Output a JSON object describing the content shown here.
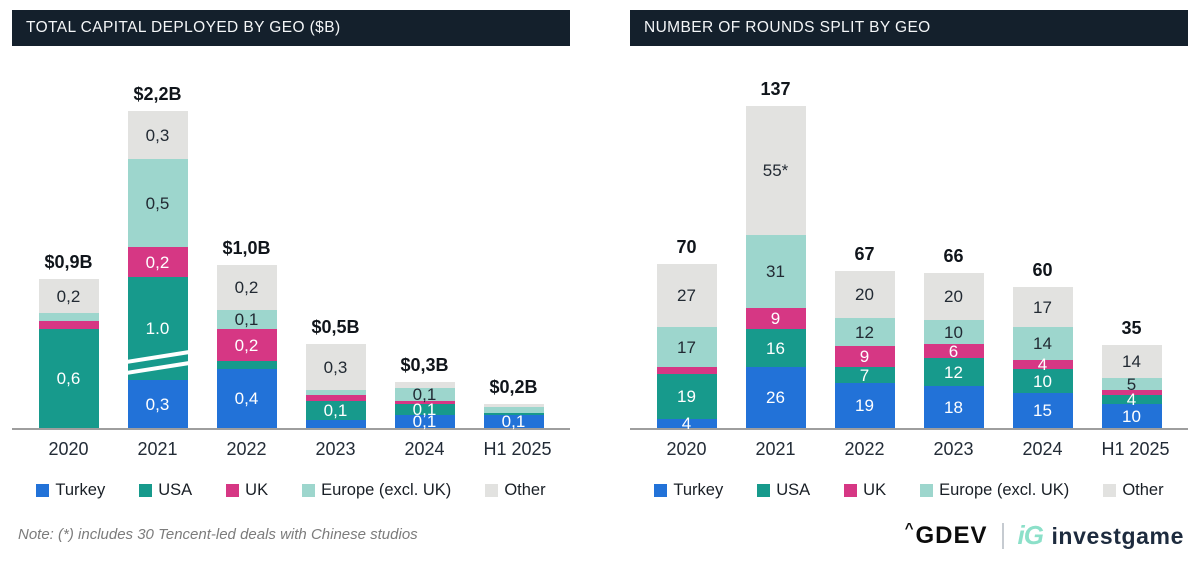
{
  "page": {
    "background": "#ffffff"
  },
  "colors": {
    "title_bar_bg": "#14202c",
    "title_bar_text": "#f4f6f8",
    "axis_line": "#9e9e9e",
    "turkey": "#2272d8",
    "usa": "#179a8c",
    "uk": "#d63784",
    "europe": "#9dd6cd",
    "other": "#e2e2e0"
  },
  "legend": [
    {
      "name": "turkey",
      "label": "Turkey",
      "color": "#2272d8"
    },
    {
      "name": "usa",
      "label": "USA",
      "color": "#179a8c"
    },
    {
      "name": "uk",
      "label": "UK",
      "color": "#d63784"
    },
    {
      "name": "europe",
      "label": "Europe (excl. UK)",
      "color": "#9dd6cd"
    },
    {
      "name": "other",
      "label": "Other",
      "color": "#e2e2e0"
    }
  ],
  "chart_data": [
    {
      "type": "bar",
      "stacked": true,
      "title": "TOTAL CAPITAL DEPLOYED BY GEO ($B)",
      "unit": "$B",
      "categories": [
        "2020",
        "2021",
        "2022",
        "2023",
        "2024",
        "H1 2025"
      ],
      "totals": [
        "$0,9B",
        "$2,2B",
        "$1,0B",
        "$0,5B",
        "$0,3B",
        "$0,2B"
      ],
      "axis_break_note": "2021 USA segment drawn with axis break",
      "series": [
        {
          "name": "Turkey",
          "key": "turkey",
          "color": "#2272d8",
          "label_color": "#ffffff",
          "values": [
            0,
            0.3,
            0.4,
            0.05,
            0.1,
            0.1
          ],
          "labels": [
            "",
            "0,3",
            "0,4",
            "",
            "0,1",
            "0,1"
          ],
          "heights": [
            0,
            48,
            59,
            8,
            13,
            13
          ],
          "breaks": [
            false,
            false,
            false,
            false,
            false,
            false
          ]
        },
        {
          "name": "USA",
          "key": "usa",
          "color": "#179a8c",
          "label_color": "#ffffff",
          "values": [
            0.6,
            1.0,
            0.05,
            0.1,
            0.1,
            0.01
          ],
          "labels": [
            "0,6",
            "1.0",
            "",
            "0,1",
            "0,1",
            ""
          ],
          "heights": [
            99,
            103,
            8,
            19,
            11,
            2
          ],
          "breaks": [
            false,
            true,
            false,
            false,
            false,
            false
          ]
        },
        {
          "name": "UK",
          "key": "uk",
          "color": "#d63784",
          "label_color": "#ffffff",
          "values": [
            0.05,
            0.2,
            0.2,
            0.04,
            0.02,
            0
          ],
          "labels": [
            "",
            "0,2",
            "0,2",
            "",
            "",
            ""
          ],
          "heights": [
            8,
            30,
            32,
            6,
            3,
            0
          ],
          "breaks": [
            false,
            false,
            false,
            false,
            false,
            false
          ]
        },
        {
          "name": "Europe (excl. UK)",
          "key": "europe",
          "color": "#9dd6cd",
          "label_color": "#222a33",
          "values": [
            0.05,
            0.5,
            0.1,
            0.03,
            0.1,
            0.04
          ],
          "labels": [
            "",
            "0,5",
            "0,1",
            "",
            "0,1",
            ""
          ],
          "heights": [
            8,
            88,
            19,
            5,
            13,
            6
          ],
          "breaks": [
            false,
            false,
            false,
            false,
            false,
            false
          ]
        },
        {
          "name": "Other",
          "key": "other",
          "color": "#e2e2e0",
          "label_color": "#222a33",
          "values": [
            0.2,
            0.3,
            0.2,
            0.3,
            0.04,
            0.02
          ],
          "labels": [
            "0,2",
            "0,3",
            "0,2",
            "0,3",
            "",
            ""
          ],
          "heights": [
            34,
            48,
            45,
            46,
            6,
            3
          ],
          "breaks": [
            false,
            false,
            false,
            false,
            false,
            false
          ]
        }
      ]
    },
    {
      "type": "bar",
      "stacked": true,
      "title": "NUMBER OF ROUNDS SPLIT BY GEO",
      "unit": "rounds",
      "categories": [
        "2020",
        "2021",
        "2022",
        "2023",
        "2024",
        "H1 2025"
      ],
      "totals": [
        "70",
        "137",
        "67",
        "66",
        "60",
        "35"
      ],
      "series": [
        {
          "name": "Turkey",
          "key": "turkey",
          "color": "#2272d8",
          "label_color": "#ffffff",
          "values": [
            4,
            26,
            19,
            18,
            15,
            10
          ],
          "labels": [
            "4",
            "26",
            "19",
            "18",
            "15",
            "10"
          ],
          "heights": [
            9,
            61,
            45,
            42,
            35,
            24
          ],
          "breaks": [
            false,
            false,
            false,
            false,
            false,
            false
          ]
        },
        {
          "name": "USA",
          "key": "usa",
          "color": "#179a8c",
          "label_color": "#ffffff",
          "values": [
            19,
            16,
            7,
            12,
            10,
            4
          ],
          "labels": [
            "19",
            "16",
            "7",
            "12",
            "10",
            "4"
          ],
          "heights": [
            45,
            38,
            16,
            28,
            24,
            9
          ],
          "breaks": [
            false,
            false,
            false,
            false,
            false,
            false
          ]
        },
        {
          "name": "UK",
          "key": "uk",
          "color": "#d63784",
          "label_color": "#ffffff",
          "values": [
            3,
            9,
            9,
            6,
            4,
            2
          ],
          "labels": [
            "",
            "9",
            "9",
            "6",
            "4",
            ""
          ],
          "heights": [
            7,
            21,
            21,
            14,
            9,
            5
          ],
          "breaks": [
            false,
            false,
            false,
            false,
            false,
            false
          ]
        },
        {
          "name": "Europe (excl. UK)",
          "key": "europe",
          "color": "#9dd6cd",
          "label_color": "#222a33",
          "values": [
            17,
            31,
            12,
            10,
            14,
            5
          ],
          "labels": [
            "17",
            "31",
            "12",
            "10",
            "14",
            "5"
          ],
          "heights": [
            40,
            73,
            28,
            24,
            33,
            12
          ],
          "breaks": [
            false,
            false,
            false,
            false,
            false,
            false
          ]
        },
        {
          "name": "Other",
          "key": "other",
          "color": "#e2e2e0",
          "label_color": "#222a33",
          "values": [
            27,
            55,
            20,
            20,
            17,
            14
          ],
          "labels": [
            "27",
            "55*",
            "20",
            "20",
            "17",
            "14"
          ],
          "heights": [
            63,
            129,
            47,
            47,
            40,
            33
          ],
          "breaks": [
            false,
            false,
            false,
            false,
            false,
            false
          ]
        }
      ]
    }
  ],
  "note": "Note: (*) includes 30 Tencent-led deals with Chinese studios",
  "footer": {
    "gdev_caret": "^",
    "gdev_label": "GDEV",
    "divider": "|",
    "ig_mark": "iG",
    "investgame_label": "investgame"
  }
}
